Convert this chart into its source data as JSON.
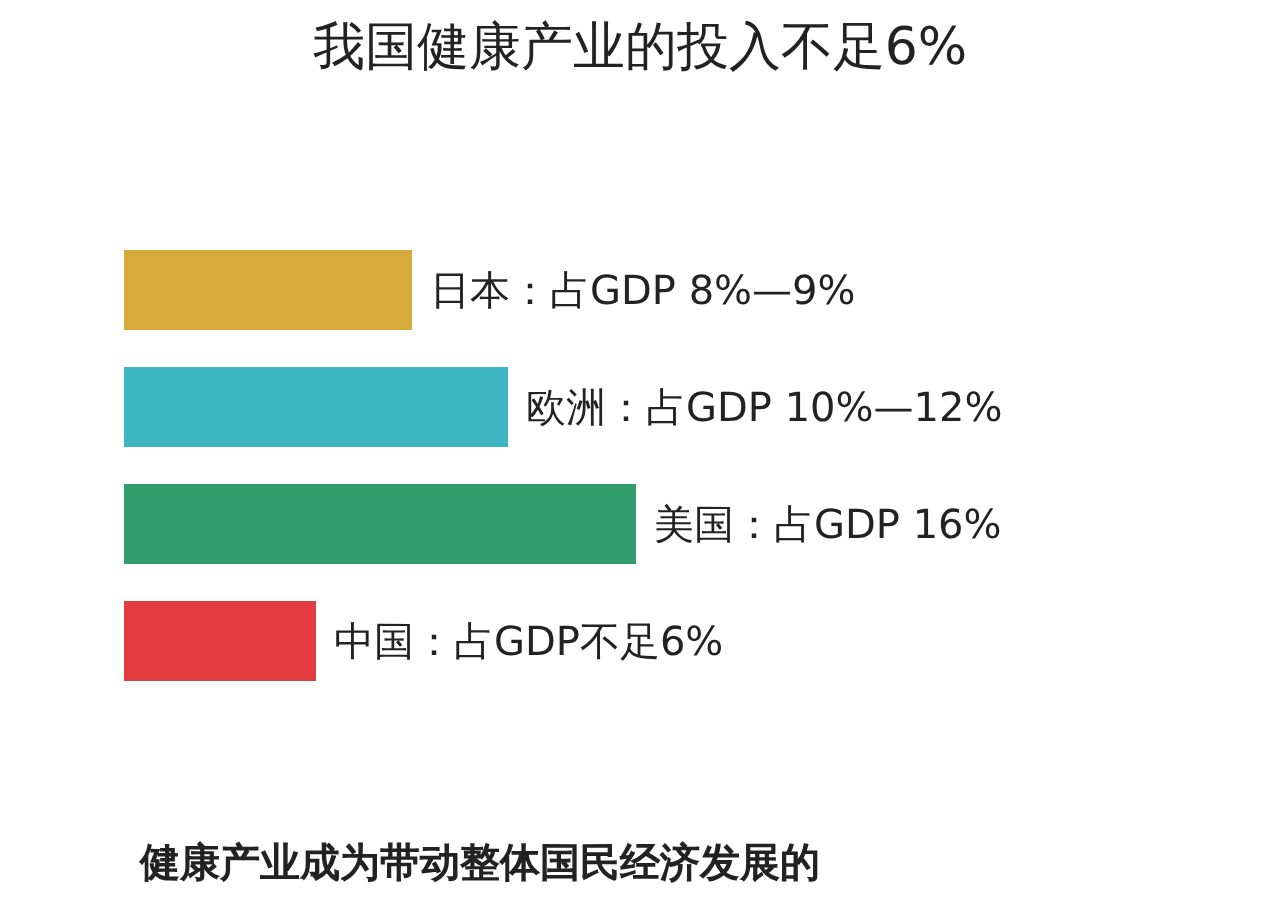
{
  "chart_data": {
    "type": "bar",
    "orientation": "horizontal",
    "title": "我国健康产业的投入不足6%",
    "categories": [
      null,
      null,
      null,
      null
    ],
    "values": [
      9,
      12,
      16,
      6
    ],
    "colors": [
      "#d6aa3c",
      "#3db5c3",
      "#2f9d6c",
      "#e23b40"
    ],
    "value_labels": [
      "日本：占GDP 8%—9%",
      "欧洲：占GDP 10%—12%",
      "美国：占GDP 16%",
      "中国：占GDP不足6%"
    ],
    "annotations": [
      "健康产业成为带动整体国民经济发展的"
    ]
  }
}
